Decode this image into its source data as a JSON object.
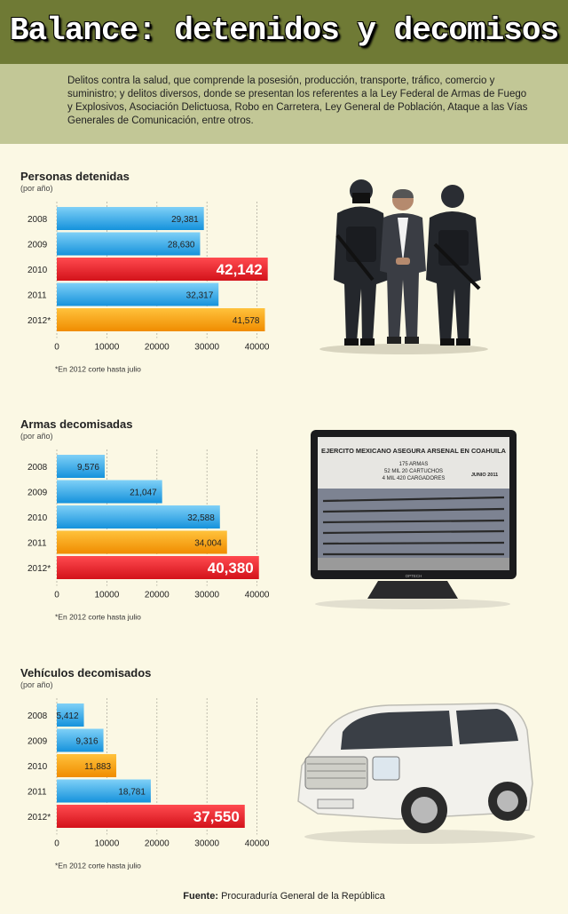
{
  "header": {
    "title": "Balance: detenidos y decomisos",
    "intro": "Delitos contra la salud, que comprende la posesión, producción, transporte, tráfico, comercio y suministro; y delitos diversos, donde se presentan los referentes a la Ley Federal de Armas de Fuego y Explosivos, Asociación Delictuosa, Robo en Carretera, Ley General de Población, Ataque a las Vías Generales de Comunicación, entre otros."
  },
  "colors": {
    "header": "#6f7a35",
    "intro_band": "#c2c796",
    "background": "#fbf8e4",
    "bar_blue": "#1aa3e4",
    "bar_red": "#e31c24",
    "bar_orange": "#f5a200"
  },
  "chart_data": [
    {
      "type": "bar",
      "orientation": "horizontal",
      "title": "Personas detenidas",
      "subtitle": "(por año)",
      "categories": [
        "2008",
        "2009",
        "2010",
        "2011",
        "2012*"
      ],
      "values": [
        29381,
        28630,
        42142,
        32317,
        41578
      ],
      "value_labels": [
        "29,381",
        "28,630",
        "42,142",
        "32,317",
        "41,578"
      ],
      "bar_colors": [
        "blue",
        "blue",
        "red",
        "blue",
        "orange"
      ],
      "xticks": [
        0,
        10000,
        20000,
        30000,
        40000
      ],
      "xlim": [
        0,
        45000
      ],
      "grid": true,
      "note": "*En 2012 corte hasta julio"
    },
    {
      "type": "bar",
      "orientation": "horizontal",
      "title": "Armas decomisadas",
      "subtitle": "(por año)",
      "categories": [
        "2008",
        "2009",
        "2010",
        "2011",
        "2012*"
      ],
      "values": [
        9576,
        21047,
        32588,
        34004,
        40380
      ],
      "value_labels": [
        "9,576",
        "21,047",
        "32,588",
        "34,004",
        "40,380"
      ],
      "bar_colors": [
        "blue",
        "blue",
        "blue",
        "orange",
        "red"
      ],
      "xticks": [
        0,
        10000,
        20000,
        30000,
        40000
      ],
      "xlim": [
        0,
        45000
      ],
      "grid": true,
      "note": "*En 2012 corte hasta julio"
    },
    {
      "type": "bar",
      "orientation": "horizontal",
      "title": "Vehículos decomisados",
      "subtitle": "(por año)",
      "categories": [
        "2008",
        "2009",
        "2010",
        "2011",
        "2012*"
      ],
      "values": [
        5412,
        9316,
        11883,
        18781,
        37550
      ],
      "value_labels": [
        "5,412",
        "9,316",
        "11,883",
        "18,781",
        "37,550"
      ],
      "bar_colors": [
        "blue",
        "blue",
        "orange",
        "blue",
        "red"
      ],
      "xticks": [
        0,
        10000,
        20000,
        30000,
        40000
      ],
      "xlim": [
        0,
        45000
      ],
      "grid": true,
      "note": "*En 2012 corte hasta julio"
    }
  ],
  "tv_screen": {
    "headline": "EJERCITO MEXICANO ASEGURA ARSENAL EN COAHUILA",
    "detail1": "175 ARMAS",
    "detail2": "52 MIL 20 CARTUCHOS",
    "detail3": "4 MIL 420 CARGADORES",
    "date": "JUNIO 2011",
    "brand": "OPTECH"
  },
  "footer": {
    "source_label": "Fuente:",
    "source_text": "Procuraduría General de la República"
  }
}
